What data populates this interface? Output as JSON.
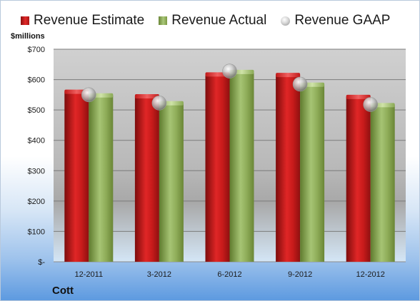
{
  "chart_data": {
    "type": "bar",
    "title": "Cott",
    "ylabel": "$millions",
    "xlabel": "",
    "categories": [
      "12-2011",
      "3-2012",
      "6-2012",
      "9-2012",
      "12-2012"
    ],
    "series": [
      {
        "name": "Revenue Estimate",
        "kind": "bar",
        "color": "#c81e1e",
        "values": [
          560,
          545,
          617,
          615,
          543
        ]
      },
      {
        "name": "Revenue Actual",
        "kind": "bar",
        "color": "#94b35f",
        "values": [
          548,
          522,
          625,
          583,
          516
        ]
      },
      {
        "name": "Revenue GAAP",
        "kind": "marker",
        "color": "#b8b8b8",
        "values": [
          550,
          523,
          628,
          585,
          518
        ]
      }
    ],
    "ylim": [
      0,
      700
    ],
    "yticks": [
      0,
      100,
      200,
      300,
      400,
      500,
      600,
      700
    ],
    "ytick_labels": [
      "$-",
      "$100",
      "$200",
      "$300",
      "$400",
      "$500",
      "$600",
      "$700"
    ],
    "grid": true,
    "legend_position": "top"
  }
}
